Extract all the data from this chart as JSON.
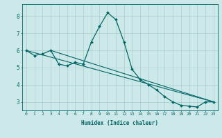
{
  "xlabel": "Humidex (Indice chaleur)",
  "ylabel": "",
  "background_color": "#cce8e8",
  "grid_color": "#aacccc",
  "line_color": "#006666",
  "xlim": [
    -0.5,
    23.5
  ],
  "ylim": [
    2.5,
    8.7
  ],
  "yticks": [
    3,
    4,
    5,
    6,
    7,
    8
  ],
  "xticks": [
    0,
    1,
    2,
    3,
    4,
    5,
    6,
    7,
    8,
    9,
    10,
    11,
    12,
    13,
    14,
    15,
    16,
    17,
    18,
    19,
    20,
    21,
    22,
    23
  ],
  "series": [
    [
      0,
      6.0
    ],
    [
      1,
      5.7
    ],
    [
      2,
      5.8
    ],
    [
      3,
      6.0
    ],
    [
      4,
      5.2
    ],
    [
      5,
      5.1
    ],
    [
      6,
      5.3
    ],
    [
      7,
      5.2
    ],
    [
      8,
      6.5
    ],
    [
      9,
      7.4
    ],
    [
      10,
      8.2
    ],
    [
      11,
      7.8
    ],
    [
      12,
      6.5
    ],
    [
      13,
      4.9
    ],
    [
      14,
      4.3
    ],
    [
      15,
      4.0
    ],
    [
      16,
      3.7
    ],
    [
      17,
      3.3
    ],
    [
      18,
      3.0
    ],
    [
      19,
      2.8
    ],
    [
      20,
      2.75
    ],
    [
      21,
      2.7
    ],
    [
      22,
      3.0
    ],
    [
      23,
      3.0
    ]
  ],
  "trend_series": [
    [
      0,
      6.0
    ],
    [
      23,
      3.0
    ]
  ],
  "trend2_series": [
    [
      3,
      6.0
    ],
    [
      23,
      3.0
    ]
  ]
}
